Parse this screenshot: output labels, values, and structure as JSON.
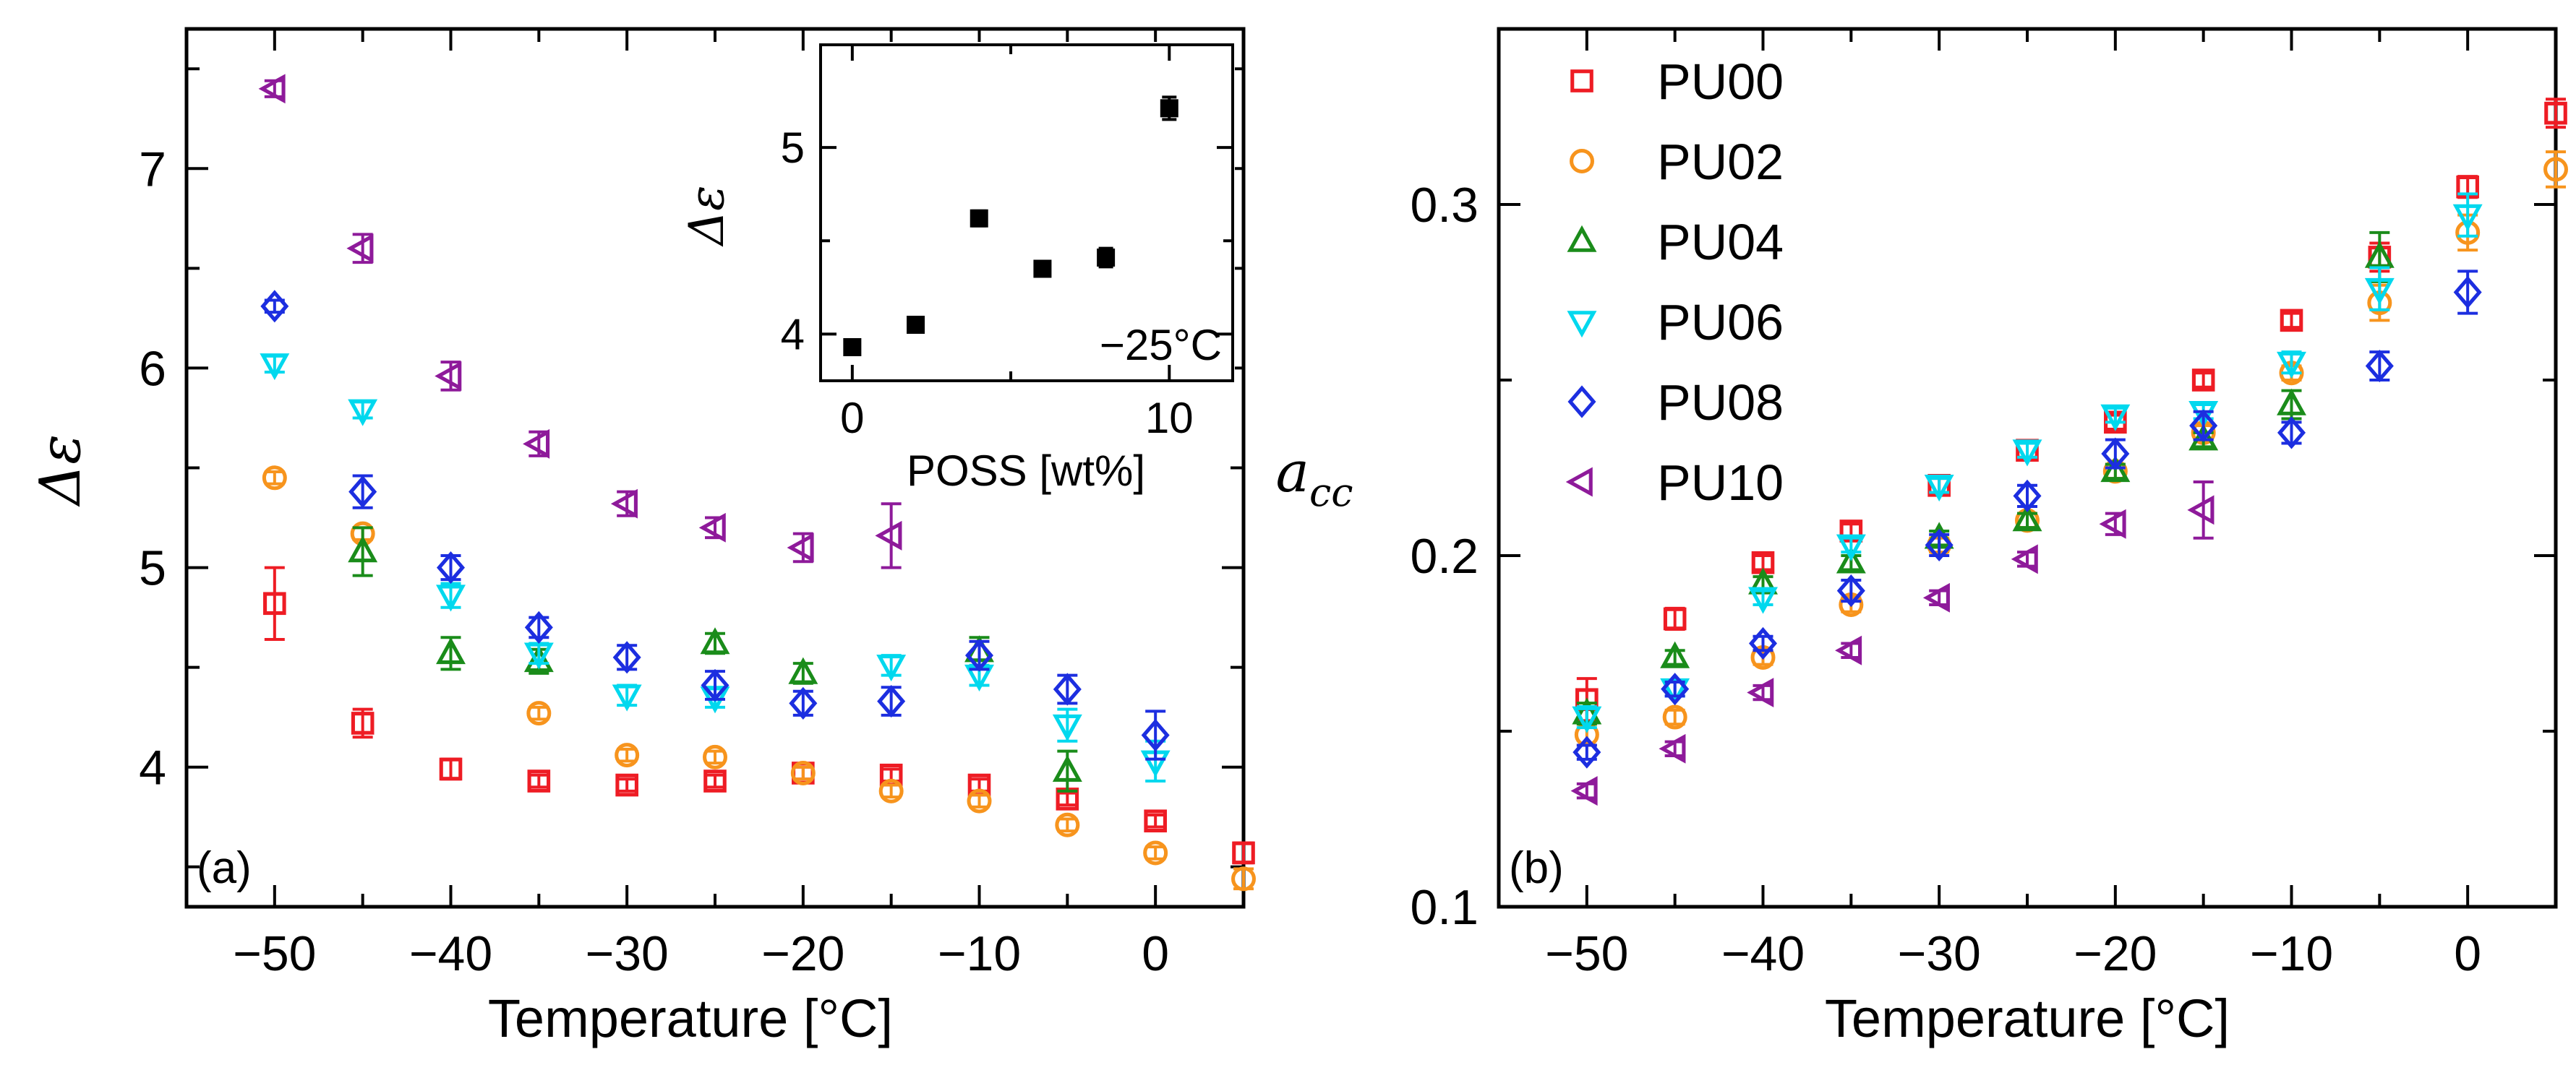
{
  "chart_data": [
    {
      "panel": "a",
      "type": "scatter",
      "panel_label": "(a)",
      "xlabel": "Temperature [°C]",
      "ylabel": "Δε",
      "xlim": [
        -55,
        5
      ],
      "ylim": [
        3.3,
        7.7
      ],
      "xticks": [
        -50,
        -40,
        -30,
        -20,
        -10,
        0
      ],
      "yticks": [
        4,
        5,
        6,
        7
      ],
      "series": [
        {
          "name": "PU00",
          "color": "#ee1c24",
          "marker": "square",
          "x": [
            -50,
            -45,
            -40,
            -35,
            -30,
            -25,
            -20,
            -15,
            -10,
            -5,
            0,
            5
          ],
          "y": [
            4.82,
            4.22,
            3.99,
            3.93,
            3.91,
            3.93,
            3.97,
            3.96,
            3.91,
            3.84,
            3.73,
            3.57
          ],
          "err": [
            0.18,
            0.07,
            0.05,
            0.03,
            0.03,
            0.03,
            0.03,
            0.03,
            0.03,
            0.03,
            0.03,
            0.05
          ]
        },
        {
          "name": "PU02",
          "color": "#f7941d",
          "marker": "circle",
          "x": [
            -50,
            -45,
            -35,
            -30,
            -25,
            -20,
            -15,
            -10,
            -5,
            0,
            5
          ],
          "y": [
            5.45,
            5.17,
            4.27,
            4.06,
            4.05,
            3.97,
            3.88,
            3.83,
            3.71,
            3.57,
            3.44
          ],
          "err": [
            0.03,
            0.03,
            0.03,
            0.03,
            0.03,
            0.03,
            0.03,
            0.03,
            0.03,
            0.03,
            0.05
          ]
        },
        {
          "name": "PU04",
          "color": "#1a8c1a",
          "marker": "triangle-up",
          "x": [
            -45,
            -40,
            -35,
            -25,
            -20,
            -10,
            -5
          ],
          "y": [
            5.08,
            4.57,
            4.53,
            4.62,
            4.47,
            4.58,
            3.98
          ],
          "err": [
            0.12,
            0.08,
            0.06,
            0.05,
            0.05,
            0.07,
            0.1
          ]
        },
        {
          "name": "PU06",
          "color": "#00d8ee",
          "marker": "triangle-down",
          "x": [
            -50,
            -45,
            -40,
            -35,
            -30,
            -25,
            -15,
            -10,
            -5,
            0
          ],
          "y": [
            6.02,
            5.79,
            4.86,
            4.57,
            4.36,
            4.35,
            4.51,
            4.46,
            4.21,
            4.03
          ],
          "err": [
            0.04,
            0.04,
            0.06,
            0.05,
            0.05,
            0.05,
            0.05,
            0.05,
            0.08,
            0.1
          ]
        },
        {
          "name": "PU08",
          "color": "#1c2ee0",
          "marker": "diamond",
          "x": [
            -50,
            -45,
            -40,
            -35,
            -30,
            -25,
            -20,
            -15,
            -10,
            -5,
            0
          ],
          "y": [
            6.31,
            5.38,
            5.0,
            4.7,
            4.55,
            4.41,
            4.32,
            4.33,
            4.56,
            4.39,
            4.16
          ],
          "err": [
            0.03,
            0.08,
            0.06,
            0.05,
            0.06,
            0.07,
            0.06,
            0.07,
            0.07,
            0.07,
            0.12
          ]
        },
        {
          "name": "PU10",
          "color": "#8e1a9a",
          "marker": "triangle-left",
          "x": [
            -50,
            -45,
            -40,
            -35,
            -30,
            -25,
            -20,
            -15
          ],
          "y": [
            7.4,
            6.6,
            5.96,
            5.62,
            5.32,
            5.2,
            5.1,
            5.16
          ],
          "err": [
            0.04,
            0.07,
            0.07,
            0.06,
            0.06,
            0.05,
            0.07,
            0.16
          ]
        }
      ]
    },
    {
      "panel": "a-inset",
      "type": "scatter",
      "title": "−25°C",
      "xlabel": "POSS [wt%]",
      "ylabel": "Δε",
      "xlim": [
        -1,
        12
      ],
      "ylim": [
        3.75,
        5.55
      ],
      "xticks": [
        0,
        10
      ],
      "yticks": [
        4,
        5
      ],
      "series": [
        {
          "name": "Δε at −25°C",
          "color": "#000000",
          "marker": "filled-square",
          "x": [
            0,
            2,
            4,
            6,
            8,
            10
          ],
          "y": [
            3.93,
            4.05,
            4.62,
            4.35,
            4.41,
            5.21
          ],
          "err": [
            0.02,
            0.02,
            0.04,
            0.03,
            0.05,
            0.06
          ]
        }
      ]
    },
    {
      "panel": "b",
      "type": "scatter",
      "panel_label": "(b)",
      "xlabel": "Temperature [°C]",
      "ylabel": "a",
      "ylabel_sub": "cc",
      "xlim": [
        -55,
        5
      ],
      "ylim": [
        0.1,
        0.35
      ],
      "xticks": [
        -50,
        -40,
        -30,
        -20,
        -10,
        0
      ],
      "yticks": [
        "0.1",
        "0.2",
        "0.3"
      ],
      "legend": "top-left",
      "series": [
        {
          "name": "PU00",
          "color": "#ee1c24",
          "marker": "square",
          "x": [
            -50,
            -45,
            -40,
            -35,
            -30,
            -25,
            -20,
            -15,
            -10,
            -5,
            0,
            5
          ],
          "y": [
            0.159,
            0.182,
            0.198,
            0.207,
            0.22,
            0.23,
            0.238,
            0.25,
            0.267,
            0.285,
            0.305,
            0.326
          ],
          "err": [
            0.006,
            0.003,
            0.002,
            0.002,
            0.002,
            0.002,
            0.002,
            0.002,
            0.002,
            0.004,
            0.003,
            0.004
          ]
        },
        {
          "name": "PU02",
          "color": "#f7941d",
          "marker": "circle",
          "x": [
            -50,
            -45,
            -40,
            -35,
            -30,
            -25,
            -20,
            -15,
            -10,
            -5,
            0,
            5
          ],
          "y": [
            0.149,
            0.154,
            0.171,
            0.186,
            0.203,
            0.21,
            0.224,
            0.235,
            0.252,
            0.272,
            0.292,
            0.31
          ],
          "err": [
            0.003,
            0.002,
            0.002,
            0.002,
            0.002,
            0.002,
            0.002,
            0.002,
            0.002,
            0.005,
            0.005,
            0.005
          ]
        },
        {
          "name": "PU04",
          "color": "#1a8c1a",
          "marker": "triangle-up",
          "x": [
            -50,
            -45,
            -40,
            -35,
            -30,
            -25,
            -20,
            -15,
            -10,
            -5
          ],
          "y": [
            0.155,
            0.171,
            0.192,
            0.198,
            0.205,
            0.21,
            0.224,
            0.233,
            0.243,
            0.285
          ],
          "err": [
            0.003,
            0.002,
            0.002,
            0.002,
            0.002,
            0.002,
            0.002,
            0.002,
            0.004,
            0.007
          ]
        },
        {
          "name": "PU06",
          "color": "#00d8ee",
          "marker": "triangle-down",
          "x": [
            -50,
            -45,
            -40,
            -35,
            -30,
            -25,
            -20,
            -15,
            -10,
            -5,
            0
          ],
          "y": [
            0.154,
            0.162,
            0.188,
            0.203,
            0.22,
            0.23,
            0.24,
            0.241,
            0.255,
            0.276,
            0.297
          ],
          "err": [
            0.003,
            0.002,
            0.002,
            0.002,
            0.002,
            0.002,
            0.002,
            0.002,
            0.003,
            0.006,
            0.006
          ]
        },
        {
          "name": "PU08",
          "color": "#1c2ee0",
          "marker": "diamond",
          "x": [
            -50,
            -45,
            -40,
            -35,
            -30,
            -25,
            -20,
            -15,
            -10,
            -5,
            0
          ],
          "y": [
            0.144,
            0.162,
            0.175,
            0.19,
            0.203,
            0.217,
            0.229,
            0.237,
            0.235,
            0.254,
            0.275
          ],
          "err": [
            0.002,
            0.002,
            0.002,
            0.003,
            0.003,
            0.003,
            0.004,
            0.004,
            0.003,
            0.004,
            0.006
          ]
        },
        {
          "name": "PU10",
          "color": "#8e1a9a",
          "marker": "triangle-left",
          "x": [
            -50,
            -45,
            -40,
            -35,
            -30,
            -25,
            -20,
            -15
          ],
          "y": [
            0.133,
            0.145,
            0.161,
            0.173,
            0.188,
            0.199,
            0.209,
            0.213
          ],
          "err": [
            0.002,
            0.002,
            0.002,
            0.002,
            0.002,
            0.002,
            0.003,
            0.008
          ]
        }
      ]
    }
  ]
}
